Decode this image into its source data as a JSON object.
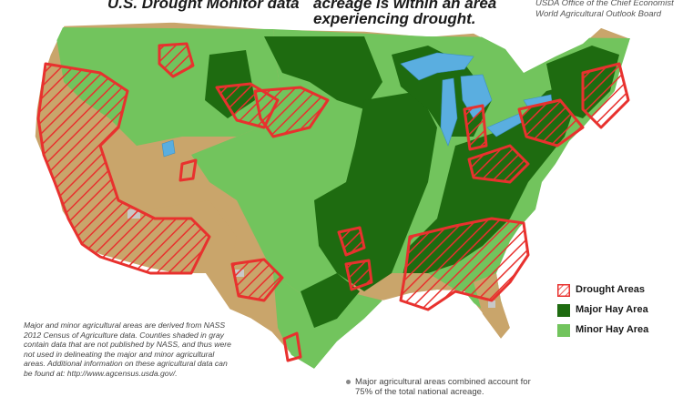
{
  "header": {
    "left_title": "U.S. Drought Monitor data",
    "center_title_line1": "acreage is within an area",
    "center_title_line2": "experiencing drought."
  },
  "source": {
    "line1": "USDA Office of the Chief Economist",
    "line2": "World Agricultural Outlook Board"
  },
  "legend": [
    {
      "label": "Drought Areas",
      "color": "#e8312e",
      "icon": "hatched-red-swatch"
    },
    {
      "label": "Major Hay Area",
      "color": "#1e6b10",
      "icon": "dark-green-swatch"
    },
    {
      "label": "Minor Hay Area",
      "color": "#72c45d",
      "icon": "light-green-swatch"
    }
  ],
  "notes": "Major and minor agricultural areas are derived from NASS 2012 Census of Agriculture data. Counties shaded in gray contain data that are not published by NASS, and thus were not used in delineating the major and minor agricultural areas. Additional information on these agricultural data can be found at: http://www.agcensus.usda.gov/.",
  "footnote": {
    "line1": "Major agricultural areas combined account for",
    "line2": "75% of the total national acreage."
  },
  "colors": {
    "major": "#1e6b10",
    "minor": "#72c45d",
    "background": "#c9a56b",
    "water": "#5aaee0",
    "drought": "#e8312e",
    "unpublished": "#c8c8c8"
  }
}
